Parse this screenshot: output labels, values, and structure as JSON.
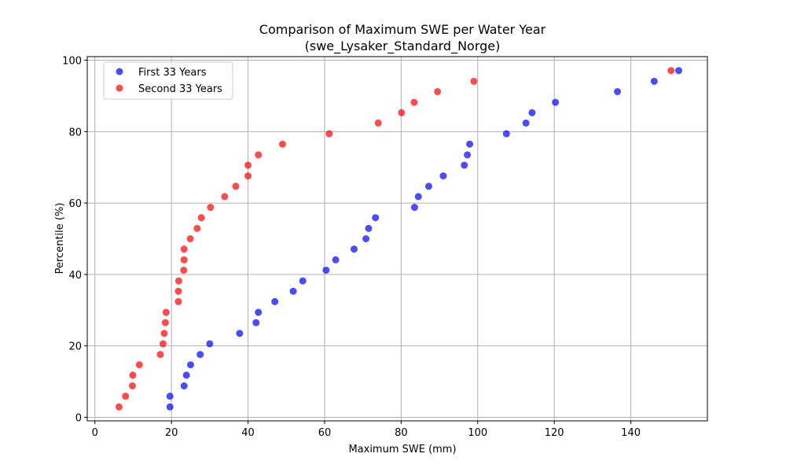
{
  "chart_data": {
    "type": "scatter",
    "title": "Comparison of Maximum SWE per Water Year",
    "subtitle": "(swe_Lysaker_Standard_Norge)",
    "xlabel": "Maximum SWE (mm)",
    "ylabel": "Percentile (%)",
    "xlim": [
      -2,
      160
    ],
    "ylim": [
      -1,
      101
    ],
    "xticks": [
      0,
      20,
      40,
      60,
      80,
      100,
      120,
      140
    ],
    "yticks": [
      0,
      20,
      40,
      60,
      80,
      100
    ],
    "grid": true,
    "legend_position": "top-left",
    "series": [
      {
        "name": "First 33 Years",
        "color": "#0000ff",
        "points": [
          [
            19.6,
            2.9
          ],
          [
            19.6,
            5.9
          ],
          [
            23.3,
            8.8
          ],
          [
            23.9,
            11.8
          ],
          [
            25.0,
            14.7
          ],
          [
            27.5,
            17.6
          ],
          [
            30.0,
            20.6
          ],
          [
            37.8,
            23.5
          ],
          [
            42.1,
            26.5
          ],
          [
            42.7,
            29.4
          ],
          [
            47.0,
            32.4
          ],
          [
            51.8,
            35.3
          ],
          [
            54.3,
            38.2
          ],
          [
            60.4,
            41.2
          ],
          [
            62.9,
            44.1
          ],
          [
            67.7,
            47.1
          ],
          [
            70.8,
            50.0
          ],
          [
            71.5,
            52.9
          ],
          [
            73.3,
            55.9
          ],
          [
            83.5,
            58.8
          ],
          [
            84.5,
            61.8
          ],
          [
            87.2,
            64.7
          ],
          [
            91.0,
            67.6
          ],
          [
            96.5,
            70.6
          ],
          [
            97.3,
            73.5
          ],
          [
            97.9,
            76.5
          ],
          [
            107.5,
            79.4
          ],
          [
            112.6,
            82.4
          ],
          [
            114.2,
            85.3
          ],
          [
            120.3,
            88.2
          ],
          [
            136.5,
            91.2
          ],
          [
            146.1,
            94.1
          ],
          [
            152.5,
            97.1
          ]
        ]
      },
      {
        "name": "Second 33 Years",
        "color": "#ff0000",
        "points": [
          [
            6.3,
            2.9
          ],
          [
            8.0,
            5.9
          ],
          [
            9.8,
            8.8
          ],
          [
            9.9,
            11.8
          ],
          [
            11.6,
            14.7
          ],
          [
            17.1,
            17.6
          ],
          [
            17.8,
            20.6
          ],
          [
            18.1,
            23.5
          ],
          [
            18.4,
            26.5
          ],
          [
            18.6,
            29.4
          ],
          [
            21.8,
            32.4
          ],
          [
            21.8,
            35.3
          ],
          [
            21.9,
            38.2
          ],
          [
            23.2,
            41.2
          ],
          [
            23.3,
            44.1
          ],
          [
            23.3,
            47.1
          ],
          [
            24.9,
            50.0
          ],
          [
            26.7,
            52.9
          ],
          [
            27.8,
            55.9
          ],
          [
            30.2,
            58.8
          ],
          [
            33.9,
            61.8
          ],
          [
            36.8,
            64.7
          ],
          [
            40.0,
            67.6
          ],
          [
            40.0,
            70.6
          ],
          [
            42.7,
            73.5
          ],
          [
            49.0,
            76.5
          ],
          [
            61.2,
            79.4
          ],
          [
            74.0,
            82.4
          ],
          [
            80.1,
            85.3
          ],
          [
            83.4,
            88.2
          ],
          [
            89.5,
            91.2
          ],
          [
            99.0,
            94.1
          ],
          [
            150.5,
            97.1
          ]
        ]
      }
    ]
  }
}
